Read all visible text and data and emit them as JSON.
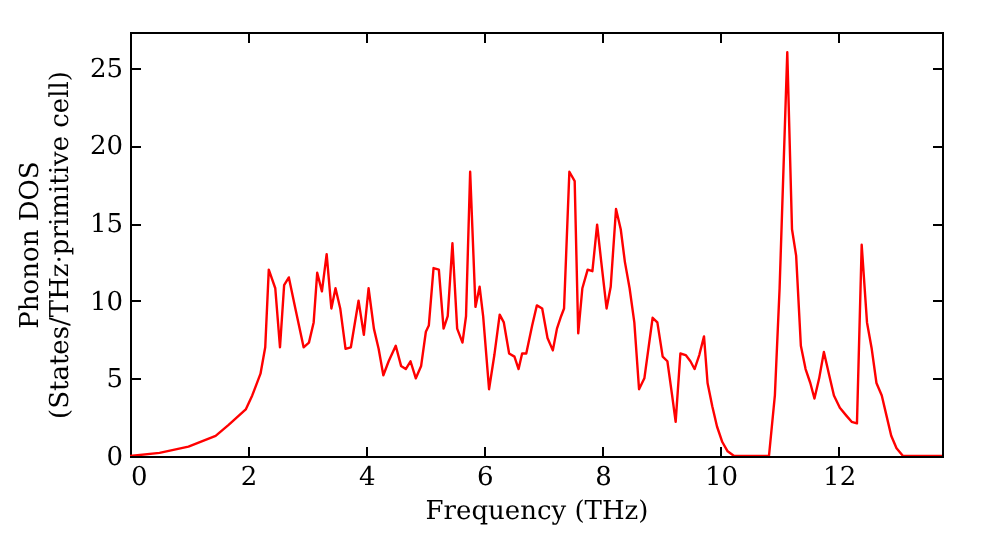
{
  "chart_data": {
    "type": "line",
    "xlabel": "Frequency (THz)",
    "ylabel": "Phonon DOS\n(States/THz·primitive cell)",
    "x": [
      0,
      0.5,
      0.99,
      1.45,
      1.67,
      1.96,
      2.07,
      2.21,
      2.29,
      2.35,
      2.46,
      2.54,
      2.61,
      2.69,
      2.8,
      2.94,
      3.03,
      3.11,
      3.17,
      3.25,
      3.33,
      3.41,
      3.48,
      3.56,
      3.65,
      3.74,
      3.87,
      3.96,
      4.04,
      4.13,
      4.21,
      4.29,
      4.38,
      4.5,
      4.59,
      4.67,
      4.75,
      4.84,
      4.93,
      5.01,
      5.06,
      5.14,
      5.23,
      5.31,
      5.38,
      5.46,
      5.54,
      5.63,
      5.69,
      5.76,
      5.85,
      5.92,
      5.98,
      6.08,
      6.17,
      6.26,
      6.33,
      6.42,
      6.51,
      6.58,
      6.64,
      6.71,
      6.81,
      6.89,
      6.98,
      7.07,
      7.16,
      7.23,
      7.3,
      7.35,
      7.44,
      7.53,
      7.59,
      7.66,
      7.75,
      7.83,
      7.91,
      7.98,
      8.07,
      8.14,
      8.23,
      8.31,
      8.38,
      8.46,
      8.54,
      8.62,
      8.71,
      8.85,
      8.93,
      9.02,
      9.1,
      9.18,
      9.24,
      9.32,
      9.41,
      9.49,
      9.56,
      9.64,
      9.72,
      9.78,
      9.86,
      9.94,
      10.03,
      10.12,
      10.23,
      10.82,
      10.92,
      11.0,
      11.13,
      11.21,
      11.28,
      11.36,
      11.44,
      11.52,
      11.59,
      11.67,
      11.75,
      11.84,
      11.92,
      12.02,
      12.13,
      12.22,
      12.31,
      12.39,
      12.48,
      12.56,
      12.64,
      12.73,
      12.81,
      12.89,
      12.98,
      13.09,
      13.75
    ],
    "series": [
      {
        "color": "#ff0000",
        "values": [
          0,
          0.2,
          0.6,
          1.3,
          2.0,
          3.0,
          3.9,
          5.3,
          7.0,
          12.0,
          10.8,
          7.0,
          11.0,
          11.5,
          9.5,
          7.0,
          7.3,
          8.6,
          11.8,
          10.6,
          13.0,
          9.5,
          10.8,
          9.5,
          6.9,
          7.0,
          10.0,
          7.8,
          10.8,
          8.2,
          6.9,
          5.2,
          6.1,
          7.1,
          5.8,
          5.6,
          6.1,
          5.0,
          5.8,
          8.0,
          8.4,
          12.1,
          12.0,
          8.2,
          9.0,
          13.7,
          8.2,
          7.3,
          9.0,
          18.3,
          9.6,
          10.9,
          9.0,
          4.3,
          6.5,
          9.1,
          8.6,
          6.6,
          6.4,
          5.6,
          6.6,
          6.6,
          8.4,
          9.7,
          9.5,
          7.6,
          6.8,
          8.2,
          9.0,
          9.5,
          18.3,
          17.7,
          7.9,
          10.8,
          12.0,
          11.9,
          14.9,
          12.5,
          9.5,
          10.9,
          15.9,
          14.6,
          12.5,
          10.8,
          8.6,
          4.3,
          5.0,
          8.9,
          8.6,
          6.4,
          6.1,
          3.9,
          2.2,
          6.6,
          6.5,
          6.1,
          5.6,
          6.5,
          7.7,
          4.7,
          3.2,
          1.9,
          0.9,
          0.3,
          0,
          0,
          3.9,
          10.8,
          26.0,
          14.6,
          12.9,
          7.1,
          5.6,
          4.7,
          3.7,
          5.0,
          6.7,
          5.2,
          3.9,
          3.1,
          2.6,
          2.2,
          2.1,
          13.6,
          8.6,
          6.9,
          4.7,
          3.9,
          2.6,
          1.3,
          0.5,
          0,
          0
        ]
      }
    ],
    "xlim": [
      0,
      13.75
    ],
    "ylim": [
      0,
      27.3
    ],
    "xticks": [
      0,
      2,
      4,
      6,
      8,
      10,
      12
    ],
    "yticks": [
      0,
      5,
      10,
      15,
      20,
      25
    ],
    "grid": false,
    "line_style": "solid",
    "marker": "none",
    "legend": false
  }
}
